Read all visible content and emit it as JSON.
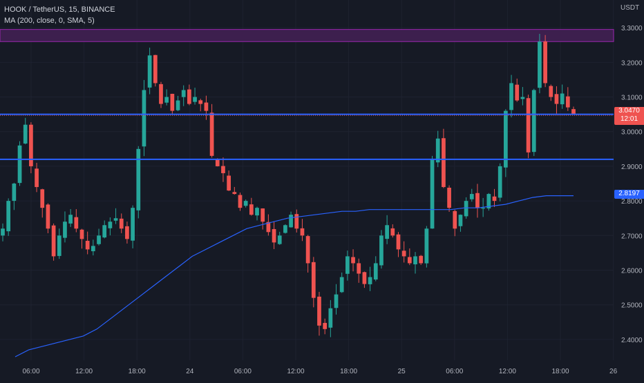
{
  "header": {
    "symbol_line": "HOOK / TetherUS, 15, BINANCE",
    "indicator_line": "MA (200, close, 0, SMA, 5)"
  },
  "currency": "USDT",
  "colors": {
    "background": "#161a25",
    "up": "#26a69a",
    "down": "#ef5350",
    "ma_line": "#2962ff",
    "level_line": "#2962ff",
    "zone_fill": "#3d1f4e",
    "zone_border": "#9c27b0",
    "grid": "#1e2230",
    "axis_text": "#b2b5be"
  },
  "price_tags": {
    "last_price": "3.0470",
    "countdown": "12:01",
    "ma_value": "2.8197"
  },
  "chart_data": {
    "type": "candlestick",
    "title": "HOOK / TetherUS, 15, BINANCE",
    "xlabel": "",
    "ylabel": "",
    "ylim": [
      2.34,
      3.38
    ],
    "grid": true,
    "x_tick_labels": [
      "06:00",
      "12:00",
      "18:00",
      "24",
      "06:00",
      "12:00",
      "18:00",
      "25",
      "06:00",
      "12:00",
      "18:00",
      "26"
    ],
    "y_tick_labels": [
      "2.4000",
      "2.5000",
      "2.6000",
      "2.7000",
      "2.8000",
      "2.9000",
      "3.0000",
      "3.1000",
      "3.2000",
      "3.3000"
    ],
    "y_ticks": [
      2.4,
      2.5,
      2.6,
      2.7,
      2.8,
      2.9,
      3.0,
      3.1,
      3.2,
      3.3
    ],
    "close_series": [
      2.72,
      2.8,
      2.85,
      2.96,
      3.02,
      2.9,
      2.84,
      2.78,
      2.72,
      2.64,
      2.7,
      2.74,
      2.76,
      2.72,
      2.69,
      2.66,
      2.67,
      2.7,
      2.73,
      2.74,
      2.75,
      2.72,
      2.69,
      2.78,
      2.95,
      3.12,
      3.22,
      3.14,
      3.08,
      3.1,
      3.06,
      3.09,
      3.12,
      3.08,
      3.1,
      3.08,
      3.06,
      2.93,
      2.9,
      2.88,
      2.83,
      2.82,
      2.78,
      2.8,
      2.76,
      2.78,
      2.74,
      2.71,
      2.68,
      2.7,
      2.73,
      2.76,
      2.72,
      2.7,
      2.62,
      2.52,
      2.44,
      2.43,
      2.49,
      2.53,
      2.58,
      2.64,
      2.62,
      2.59,
      2.56,
      2.58,
      2.62,
      2.7,
      2.73,
      2.7,
      2.66,
      2.64,
      2.62,
      2.64,
      2.62,
      2.72,
      2.92,
      2.98,
      2.84,
      2.78,
      2.72,
      2.76,
      2.8,
      2.82,
      2.78,
      2.78,
      2.82,
      2.8,
      2.9,
      3.06,
      3.14,
      3.09,
      3.1,
      2.94,
      3.12,
      3.26,
      3.14,
      3.1,
      3.08,
      3.11,
      3.07,
      3.05
    ],
    "ma_200": [
      2.35,
      2.37,
      2.38,
      2.39,
      2.4,
      2.41,
      2.43,
      2.46,
      2.49,
      2.52,
      2.55,
      2.58,
      2.61,
      2.64,
      2.66,
      2.68,
      2.7,
      2.72,
      2.73,
      2.74,
      2.75,
      2.755,
      2.76,
      2.765,
      2.77,
      2.77,
      2.775,
      2.775,
      2.775,
      2.775,
      2.775,
      2.775,
      2.775,
      2.78,
      2.78,
      2.785,
      2.79,
      2.8,
      2.81,
      2.815,
      2.815,
      2.815
    ],
    "ma_label": "MA (200, close, 0, SMA, 5)",
    "last_price": 3.047,
    "ma_last": 2.8197,
    "horizontal_levels": [
      3.05,
      2.92
    ],
    "resistance_zone": [
      3.26,
      3.295
    ]
  }
}
